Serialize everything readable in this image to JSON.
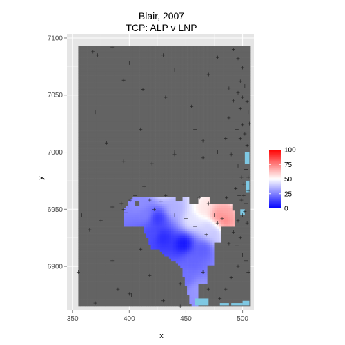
{
  "chart_data": {
    "type": "heatmap",
    "title": "Blair, 2007",
    "subtitle": "TCP: ALP v LNP",
    "xlabel": "x",
    "ylabel": "y",
    "xlim": [
      345,
      510
    ],
    "ylim": [
      6862,
      7103
    ],
    "x_ticks": [
      350,
      400,
      450,
      500
    ],
    "y_ticks": [
      6900,
      6950,
      7000,
      7050,
      7100
    ],
    "grid": true,
    "colors": {
      "panel_bg": "#e5e5e5",
      "grid_major": "#ffffff",
      "grid_minor": "#f2f2f2",
      "no_data": "#636363",
      "low": "#0000ff",
      "mid": "#ffffff",
      "high": "#ff0000",
      "na_fill": "#7ec8e3",
      "points": "#1a1a1a"
    },
    "legend": {
      "position": "right",
      "ticks": [
        100,
        75,
        50,
        25,
        0
      ],
      "range": [
        0,
        100
      ]
    },
    "value_blobs": [
      {
        "x": 448,
        "y": 6920,
        "value": 3
      },
      {
        "x": 425,
        "y": 6942,
        "value": 10
      },
      {
        "x": 430,
        "y": 6925,
        "value": 8
      },
      {
        "x": 455,
        "y": 6905,
        "value": 20
      },
      {
        "x": 465,
        "y": 6915,
        "value": 18
      },
      {
        "x": 450,
        "y": 6890,
        "value": 22
      },
      {
        "x": 460,
        "y": 6880,
        "value": 30
      },
      {
        "x": 410,
        "y": 6955,
        "value": 28
      },
      {
        "x": 415,
        "y": 6945,
        "value": 25
      },
      {
        "x": 440,
        "y": 6950,
        "value": 35
      },
      {
        "x": 430,
        "y": 6965,
        "value": 42
      },
      {
        "x": 455,
        "y": 6940,
        "value": 45
      },
      {
        "x": 470,
        "y": 6935,
        "value": 40
      },
      {
        "x": 465,
        "y": 6950,
        "value": 55
      },
      {
        "x": 478,
        "y": 6944,
        "value": 72
      },
      {
        "x": 484,
        "y": 6940,
        "value": 75
      },
      {
        "x": 488,
        "y": 6948,
        "value": 68
      },
      {
        "x": 475,
        "y": 6930,
        "value": 38
      },
      {
        "x": 498,
        "y": 6955,
        "value": 40
      },
      {
        "x": 420,
        "y": 6928,
        "value": 15
      }
    ],
    "na_patches": [
      {
        "x": [
          458,
          470
        ],
        "y": [
          6866,
          6872
        ]
      },
      {
        "x": [
          480,
          488
        ],
        "y": [
          6866,
          6868
        ]
      },
      {
        "x": [
          490,
          500
        ],
        "y": [
          6866,
          6868
        ]
      },
      {
        "x": [
          500,
          506
        ],
        "y": [
          6866,
          6870
        ]
      },
      {
        "x": [
          502,
          506
        ],
        "y": [
          6990,
          7000
        ]
      },
      {
        "x": [
          503,
          506
        ],
        "y": [
          6965,
          6975
        ]
      },
      {
        "x": [
          498,
          502
        ],
        "y": [
          6945,
          6950
        ]
      }
    ],
    "points": [
      [
        368,
        7088
      ],
      [
        372,
        7085
      ],
      [
        385,
        7092
      ],
      [
        400,
        7078
      ],
      [
        430,
        7085
      ],
      [
        440,
        7072
      ],
      [
        470,
        7068
      ],
      [
        478,
        7083
      ],
      [
        492,
        7090
      ],
      [
        496,
        7082
      ],
      [
        498,
        7062
      ],
      [
        500,
        7074
      ],
      [
        395,
        7063
      ],
      [
        412,
        7055
      ],
      [
        432,
        7048
      ],
      [
        455,
        7040
      ],
      [
        488,
        7056
      ],
      [
        492,
        7045
      ],
      [
        496,
        7052
      ],
      [
        498,
        7038
      ],
      [
        500,
        7048
      ],
      [
        502,
        7058
      ],
      [
        504,
        7044
      ],
      [
        505,
        7035
      ],
      [
        488,
        7030
      ],
      [
        495,
        7020
      ],
      [
        498,
        7012
      ],
      [
        500,
        7024
      ],
      [
        502,
        7016
      ],
      [
        504,
        7006
      ],
      [
        506,
        7025
      ],
      [
        485,
        7012
      ],
      [
        478,
        7000
      ],
      [
        458,
        7020
      ],
      [
        410,
        7020
      ],
      [
        370,
        7035
      ],
      [
        380,
        7008
      ],
      [
        395,
        6992
      ],
      [
        420,
        6990
      ],
      [
        440,
        6998
      ],
      [
        465,
        6995
      ],
      [
        490,
        6998
      ],
      [
        496,
        6988
      ],
      [
        499,
        6978
      ],
      [
        501,
        6972
      ],
      [
        503,
        6985
      ],
      [
        505,
        6978
      ],
      [
        494,
        6968
      ],
      [
        497,
        6962
      ],
      [
        499,
        6958
      ],
      [
        501,
        6962
      ],
      [
        503,
        6955
      ],
      [
        505,
        6966
      ],
      [
        500,
        6945
      ],
      [
        502,
        6948
      ],
      [
        504,
        6938
      ],
      [
        496,
        6940
      ],
      [
        492,
        6930
      ],
      [
        488,
        6920
      ],
      [
        495,
        6918
      ],
      [
        498,
        6925
      ],
      [
        500,
        6910
      ],
      [
        503,
        6905
      ],
      [
        505,
        6895
      ],
      [
        496,
        6900
      ],
      [
        490,
        6890
      ],
      [
        485,
        6880
      ],
      [
        480,
        6872
      ],
      [
        470,
        6880
      ],
      [
        465,
        6895
      ],
      [
        358,
        6945
      ],
      [
        365,
        6932
      ],
      [
        375,
        6940
      ],
      [
        385,
        6952
      ],
      [
        393,
        6955
      ],
      [
        395,
        6950
      ],
      [
        397,
        6947
      ],
      [
        399,
        6953
      ],
      [
        401,
        6958
      ],
      [
        405,
        6962
      ],
      [
        413,
        6970
      ],
      [
        418,
        6958
      ],
      [
        422,
        6950
      ],
      [
        428,
        6957
      ],
      [
        432,
        6962
      ],
      [
        440,
        6945
      ],
      [
        450,
        6942
      ],
      [
        458,
        6935
      ],
      [
        468,
        6928
      ],
      [
        475,
        6945
      ],
      [
        482,
        6942
      ],
      [
        470,
        6955
      ],
      [
        462,
        6960
      ],
      [
        478,
        6938
      ],
      [
        410,
        6915
      ],
      [
        385,
        6905
      ],
      [
        390,
        6880
      ],
      [
        400,
        6876
      ],
      [
        402,
        6875
      ],
      [
        430,
        6870
      ],
      [
        445,
        6885
      ],
      [
        355,
        6895
      ],
      [
        370,
        6868
      ],
      [
        440,
        7000
      ],
      [
        465,
        7010
      ],
      [
        486,
        6960
      ],
      [
        445,
        6865
      ],
      [
        418,
        6892
      ]
    ]
  }
}
